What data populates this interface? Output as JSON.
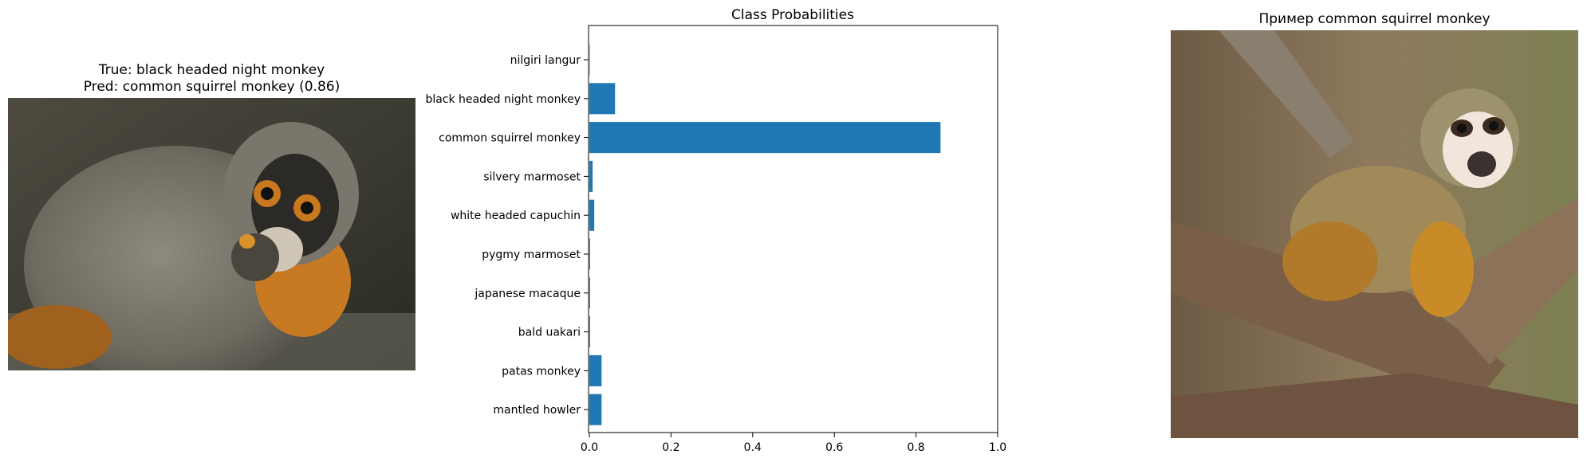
{
  "left_panel": {
    "title_true": "True: black headed night monkey",
    "title_pred": "Pred: common squirrel monkey (0.86)",
    "image": "night-monkey-photo"
  },
  "right_panel": {
    "title": "Пример common squirrel monkey",
    "image": "squirrel-monkey-photo"
  },
  "chart_data": {
    "type": "bar",
    "orientation": "horizontal",
    "title": "Class Probabilities",
    "categories": [
      "nilgiri langur",
      "black headed night monkey",
      "common squirrel monkey",
      "silvery marmoset",
      "white headed capuchin",
      "pygmy marmoset",
      "japanese macaque",
      "bald uakari",
      "patas monkey",
      "mantled howler"
    ],
    "values": [
      0.001,
      0.063,
      0.86,
      0.008,
      0.012,
      0.002,
      0.002,
      0.002,
      0.03,
      0.03
    ],
    "xlim": [
      0,
      1.0
    ],
    "xticks": [
      "0.0",
      "0.2",
      "0.4",
      "0.6",
      "0.8",
      "1.0"
    ],
    "xtick_values": [
      0,
      0.2,
      0.4,
      0.6,
      0.8,
      1.0
    ],
    "bar_color": "#1f77b4",
    "grid": false
  }
}
